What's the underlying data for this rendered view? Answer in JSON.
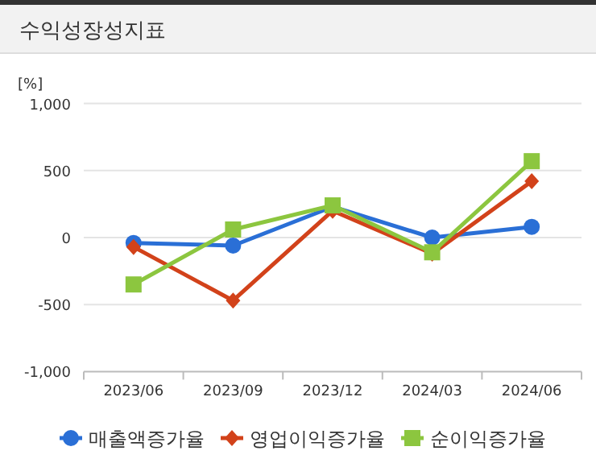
{
  "chart_data": {
    "type": "line",
    "title": "수익성장성지표",
    "ylabel": "[%]",
    "categories": [
      "2023/06",
      "2023/09",
      "2023/12",
      "2024/03",
      "2024/06"
    ],
    "series": [
      {
        "name": "매출액증가율",
        "color": "#2a6fd6",
        "marker": "circle",
        "values": [
          -40,
          -60,
          230,
          0,
          80
        ]
      },
      {
        "name": "영업이익증가율",
        "color": "#d2421a",
        "marker": "diamond",
        "values": [
          -70,
          -470,
          200,
          -120,
          420
        ]
      },
      {
        "name": "순이익증가율",
        "color": "#8cc63f",
        "marker": "square",
        "values": [
          -350,
          60,
          240,
          -110,
          570
        ]
      }
    ],
    "ylim": [
      -1000,
      1000
    ],
    "yticks": [
      {
        "value": -1000,
        "label": "-1,000"
      },
      {
        "value": -500,
        "label": "-500"
      },
      0,
      500,
      {
        "value": 1000,
        "label": "1,000"
      }
    ],
    "grid": "y",
    "legend": "bottom"
  }
}
